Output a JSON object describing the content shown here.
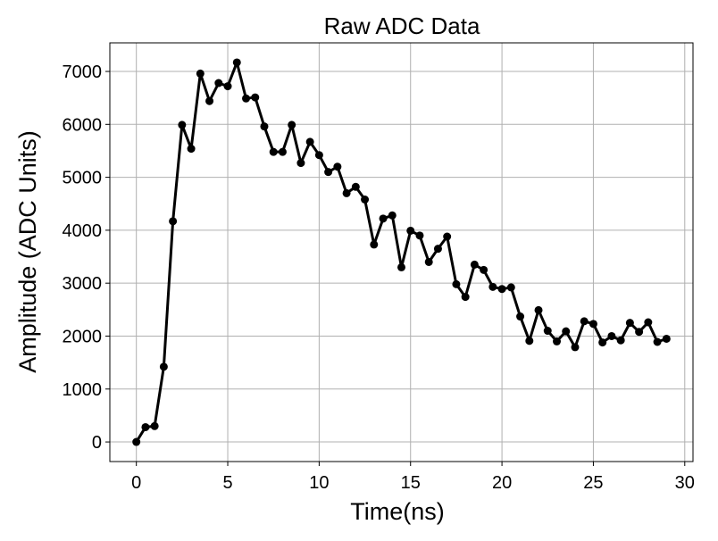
{
  "chart_data": {
    "type": "line",
    "title": "Raw ADC Data",
    "x_label": "Time(ns)",
    "y_label": "Amplitude (ADC Units)",
    "x": [
      0,
      0.5,
      1,
      1.5,
      2,
      2.5,
      3,
      3.5,
      4,
      4.5,
      5,
      5.5,
      6,
      6.5,
      7,
      7.5,
      8,
      8.5,
      9,
      9.5,
      10,
      10.5,
      11,
      11.5,
      12,
      12.5,
      13,
      13.5,
      14,
      14.5,
      15,
      15.5,
      16,
      16.5,
      17,
      17.5,
      18,
      18.5,
      19,
      19.5,
      20,
      20.5,
      21,
      21.5,
      22,
      22.5,
      23,
      23.5,
      24,
      24.5,
      25,
      25.5,
      26,
      26.5,
      27,
      27.5,
      28,
      28.5,
      29
    ],
    "series": [
      {
        "name": "ADC",
        "color": "#000000",
        "values": [
          0,
          280,
          300,
          1420,
          4170,
          5990,
          5540,
          6960,
          6440,
          6780,
          6720,
          7170,
          6490,
          6510,
          5960,
          5480,
          5480,
          5990,
          5270,
          5670,
          5420,
          5100,
          5200,
          4700,
          4820,
          4580,
          3730,
          4220,
          4280,
          3300,
          3990,
          3900,
          3400,
          3650,
          3880,
          2980,
          2740,
          3350,
          3250,
          2930,
          2890,
          2920,
          2370,
          1910,
          2490,
          2100,
          1900,
          2090,
          1790,
          2280,
          2230,
          1880,
          2000,
          1920,
          2250,
          2080,
          2260,
          1890,
          1950
        ]
      }
    ],
    "xlim": [
      -1.45,
      30.45
    ],
    "ylim": [
      -370,
      7540
    ],
    "xticks": [
      0,
      5,
      10,
      15,
      20,
      25,
      30
    ],
    "yticks": [
      0,
      1000,
      2000,
      3000,
      4000,
      5000,
      6000,
      7000
    ],
    "grid": true
  }
}
